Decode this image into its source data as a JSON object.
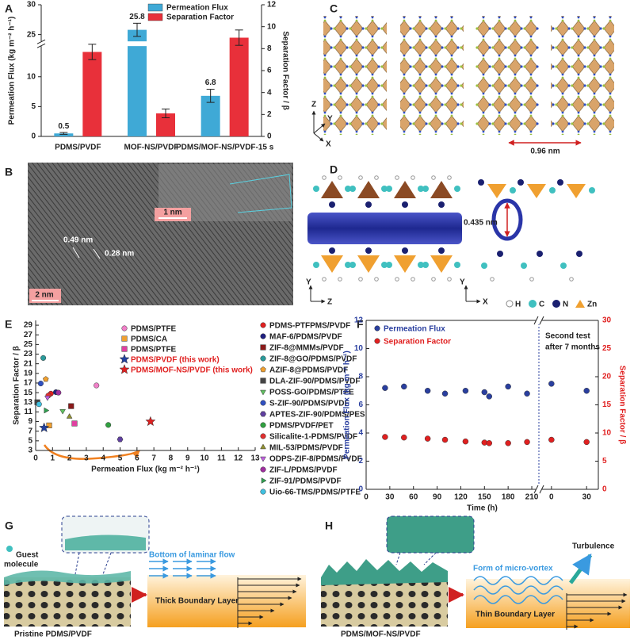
{
  "chart_data": [
    {
      "type": "bar",
      "categories": [
        "PDMS/PVDF",
        "MOF-NS/PVDF",
        "PDMS/MOF-NS/PVDF-15 s"
      ],
      "series": [
        {
          "name": "Permeation Flux",
          "color": "#3fa9d6",
          "values": [
            0.5,
            25.8,
            6.8
          ],
          "errors": [
            0.15,
            1.1,
            1.1
          ],
          "show_values": true
        },
        {
          "name": "Separation Factor",
          "color": "#e8303a",
          "axis": "y2",
          "values": [
            7.7,
            2.1,
            9.0
          ],
          "errors": [
            0.7,
            0.4,
            0.7
          ]
        }
      ],
      "ylabel": "Permeation Flux (kg m⁻² h⁻¹)",
      "y2label": "Separation Factor / β",
      "ylim": [
        0,
        30
      ],
      "yticks": [
        0,
        5,
        10,
        25,
        30
      ],
      "y_break": [
        15,
        24
      ],
      "y2lim": [
        0,
        12
      ],
      "y2ticks": [
        0,
        2,
        4,
        6,
        8,
        10,
        12
      ],
      "legend": "upper right"
    },
    {
      "type": "scatter",
      "xlabel": "Permeation Flux (kg m⁻² h⁻¹)",
      "ylabel": "Separation Factor / β",
      "xlim": [
        0,
        13
      ],
      "xticks": [
        0,
        1,
        2,
        3,
        4,
        5,
        6,
        7,
        8,
        9,
        10,
        11,
        12,
        13
      ],
      "ylim": [
        3,
        30
      ],
      "yticks": [
        3,
        5,
        7,
        9,
        11,
        13,
        15,
        17,
        19,
        21,
        23,
        25,
        27,
        29
      ],
      "series": [
        {
          "name": "PDMS/PTFE",
          "color": "#f080c8",
          "marker": "circle",
          "x": [
            3.6
          ],
          "values": [
            16.5
          ]
        },
        {
          "name": "PDMS/CA",
          "color": "#f0a030",
          "marker": "square",
          "x": [
            0.8
          ],
          "values": [
            8.2
          ]
        },
        {
          "name": "PDMS/PTFE",
          "color": "#e040a0",
          "marker": "square",
          "x": [
            2.3
          ],
          "values": [
            8.6
          ]
        },
        {
          "name": "PDMS/PVDF (this work)",
          "color": "#2040a0",
          "marker": "star",
          "text_color": "#e02020",
          "x": [
            0.5
          ],
          "values": [
            7.7
          ]
        },
        {
          "name": "PDMS/MOF-NS/PVDF (this work)",
          "color": "#e02020",
          "marker": "star",
          "text_color": "#e02020",
          "x": [
            6.8
          ],
          "values": [
            9.0
          ]
        },
        {
          "name": "PDMS-PTFPMS/PVDF",
          "color": "#e02020",
          "marker": "circle",
          "x": [
            0.9
          ],
          "values": [
            14.8
          ]
        },
        {
          "name": "MAF-6/PDMS/PVDF",
          "color": "#202080",
          "marker": "circle",
          "x": [
            1.2
          ],
          "values": [
            15.1
          ]
        },
        {
          "name": "ZIF-8@MMMs/PVDF",
          "color": "#8b1a1a",
          "marker": "square",
          "x": [
            2.1
          ],
          "values": [
            12.2
          ]
        },
        {
          "name": "ZIF-8@GO/PDMS/PVDF",
          "color": "#2a9a9a",
          "marker": "circle",
          "x": [
            0.45
          ],
          "values": [
            22.2
          ]
        },
        {
          "name": "AZIF-8@PDMS/PVDF",
          "color": "#f0a030",
          "marker": "pentagon",
          "x": [
            0.6
          ],
          "values": [
            17.8
          ]
        },
        {
          "name": "DLA-ZIF-90/PDMS/PVDF",
          "color": "#444444",
          "marker": "square",
          "x": [
            0.1
          ],
          "values": [
            13.0
          ]
        },
        {
          "name": "POSS-GO/PDMS/PTFE",
          "color": "#60c060",
          "marker": "triangle-down",
          "x": [
            1.6
          ],
          "values": [
            11.2
          ]
        },
        {
          "name": "S-ZIF-90/PDMS/PVDF",
          "color": "#3050c0",
          "marker": "circle",
          "x": [
            0.3
          ],
          "values": [
            16.9
          ]
        },
        {
          "name": "APTES-ZIF-90/PDMS/PES",
          "color": "#6040a0",
          "marker": "hexagon",
          "x": [
            5.0
          ],
          "values": [
            5.3
          ]
        },
        {
          "name": "PDMS/PVDF/PET",
          "color": "#30a040",
          "marker": "circle",
          "x": [
            4.3
          ],
          "values": [
            8.3
          ]
        },
        {
          "name": "Silicalite-1-PDMS/PVDF",
          "color": "#e03030",
          "marker": "circle",
          "x": [
            0.75
          ],
          "values": [
            14.4
          ]
        },
        {
          "name": "MIL-53/PDMS/PVDF",
          "color": "#909030",
          "marker": "triangle",
          "x": [
            2.0
          ],
          "values": [
            10.0
          ]
        },
        {
          "name": "ODPS-ZIF-8/PDMS/PVDF",
          "color": "#c060e0",
          "marker": "triangle-down",
          "x": [
            0.7
          ],
          "values": [
            14.0
          ]
        },
        {
          "name": "ZIF-L/PDMS/PVDF",
          "color": "#a030a0",
          "marker": "circle",
          "x": [
            1.35
          ],
          "values": [
            15.0
          ]
        },
        {
          "name": "ZIF-91/PDMS/PVDF",
          "color": "#30a050",
          "marker": "triangle-right",
          "x": [
            0.6
          ],
          "values": [
            11.3
          ]
        },
        {
          "name": "Uio-66-TMS/PDMS/PTFE",
          "color": "#40c0e0",
          "marker": "circle",
          "x": [
            0.2
          ],
          "values": [
            12.6
          ]
        }
      ]
    },
    {
      "type": "scatter",
      "xlabel": "Time (h)",
      "ylabel": "Permeation Flux (kg m⁻² h⁻¹)",
      "y2label": "Separation Factor / β",
      "color_axes": true,
      "xlim": [
        0,
        215
      ],
      "xticks": [
        0,
        30,
        60,
        90,
        120,
        150,
        180,
        210
      ],
      "x2lim": [
        -8,
        40
      ],
      "x2ticks": [
        0,
        30
      ],
      "ylim": [
        0,
        12
      ],
      "yticks": [
        0,
        2,
        4,
        6,
        8,
        10,
        12
      ],
      "y2lim": [
        0,
        30
      ],
      "y2ticks": [
        0,
        5,
        10,
        15,
        20,
        25,
        30
      ],
      "annotation": [
        "Second test",
        "after 7 months"
      ],
      "x": [
        24,
        48,
        78,
        100,
        126,
        150,
        156,
        180,
        204
      ],
      "x2": [
        0,
        30
      ],
      "series": [
        {
          "name": "Permeation Flux",
          "color": "#2a3f9f",
          "marker": "circle",
          "text_color": "#2a3f9f",
          "values": [
            7.2,
            7.3,
            7.0,
            6.8,
            7.0,
            6.9,
            6.6,
            7.3,
            6.8
          ],
          "values2": [
            7.5,
            7.0
          ]
        },
        {
          "name": "Separation Factor",
          "color": "#e02020",
          "marker": "circle",
          "text_color": "#e02020",
          "axis": "y2",
          "values": [
            9.3,
            9.2,
            9.0,
            8.8,
            8.5,
            8.3,
            8.2,
            8.2,
            8.4
          ],
          "values2": [
            8.8,
            8.4
          ]
        }
      ]
    }
  ],
  "figure": {
    "panel_labels": [
      "A",
      "B",
      "C",
      "D",
      "E",
      "F",
      "G",
      "H"
    ],
    "b": {
      "spacings": [
        "0.49 nm",
        "0.28 nm"
      ],
      "scale_inset": "1 nm",
      "scale_main": "2 nm"
    },
    "c": {
      "axes": [
        "Z",
        "Y",
        "X"
      ],
      "scale": "0.96 nm"
    },
    "d": {
      "axes_left": [
        "Y",
        "Z"
      ],
      "axes_right": [
        "Y",
        "X"
      ],
      "pore": "0.435 nm",
      "atoms": [
        "H",
        "C",
        "N",
        "Zn"
      ]
    },
    "g": {
      "guest": [
        "Guest",
        "molecule"
      ],
      "flow": "Bottom of laminar flow",
      "layer": "Thick Boundary Layer",
      "caption": "Pristine PDMS/PVDF"
    },
    "h": {
      "flow": "Form of micro-vortex",
      "turbulence": "Turbulence",
      "layer": "Thin Boundary Layer",
      "caption": "PDMS/MOF-NS/PVDF"
    }
  }
}
